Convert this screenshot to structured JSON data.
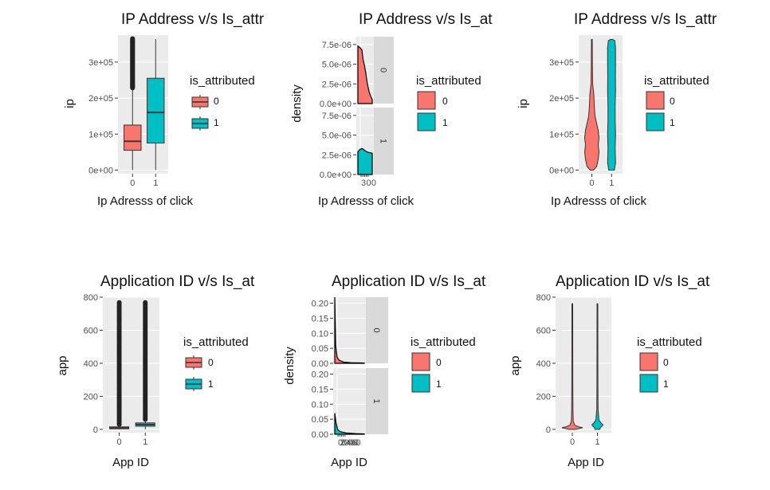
{
  "colors": {
    "level0": "#F8766D",
    "level1": "#00BFC4",
    "panel": "#EBEBEB",
    "strip": "#D9D9D9",
    "grid": "#FFFFFF",
    "ink": "#333333"
  },
  "chart_data": [
    {
      "type": "boxplot",
      "title": "IP Address v/s Is_attr",
      "xlabel": "Ip Adresss of click",
      "ylabel": "ip",
      "categories": [
        "0",
        "1"
      ],
      "ylim": [
        -10000,
        375000
      ],
      "yticks": [
        0,
        100000,
        200000,
        300000
      ],
      "ytick_labels": [
        "0e+00",
        "1e+05",
        "2e+05",
        "3e+05"
      ],
      "boxes": [
        {
          "group": "0",
          "q1": 55000,
          "median": 80000,
          "q3": 125000,
          "whisker_low": 0,
          "whisker_high": 228000,
          "outliers_from": 228000,
          "outliers_to": 365000
        },
        {
          "group": "1",
          "q1": 75000,
          "median": 160000,
          "q3": 255000,
          "whisker_low": 0,
          "whisker_high": 364000
        }
      ],
      "legend": {
        "title": "is_attributed",
        "entries": [
          "0",
          "1"
        ]
      }
    },
    {
      "type": "density",
      "title": "IP Address v/s Is_at",
      "xlabel": "Ip Adresss of click",
      "ylabel": "density",
      "facets": [
        "0",
        "1"
      ],
      "ylim": [
        0,
        8.5e-06
      ],
      "yticks": [
        0,
        2.5e-06,
        5e-06,
        7.5e-06
      ],
      "ytick_labels": [
        "0.0e+00",
        "2.5e-06",
        "5.0e-06",
        "7.5e-06"
      ],
      "x_tick_labels": "300",
      "legend": {
        "title": "is_attributed",
        "entries": [
          "0",
          "1"
        ]
      }
    },
    {
      "type": "violin",
      "title": "IP Address v/s Is_attr",
      "xlabel": "Ip Adresss of click",
      "ylabel": "ip",
      "categories": [
        "0",
        "1"
      ],
      "ylim": [
        -10000,
        375000
      ],
      "yticks": [
        0,
        100000,
        200000,
        300000
      ],
      "ytick_labels": [
        "0e+00",
        "1e+05",
        "2e+05",
        "3e+05"
      ],
      "legend": {
        "title": "is_attributed",
        "entries": [
          "0",
          "1"
        ]
      }
    },
    {
      "type": "boxplot",
      "title": "Application ID v/s Is_at",
      "xlabel": "App ID",
      "ylabel": "app",
      "categories": [
        "0",
        "1"
      ],
      "ylim": [
        -20,
        800
      ],
      "yticks": [
        0,
        200,
        400,
        600,
        800
      ],
      "ytick_labels": [
        "0",
        "200",
        "400",
        "600",
        "800"
      ],
      "boxes": [
        {
          "group": "0",
          "q1": 3,
          "median": 9,
          "q3": 15,
          "whisker_low": 0,
          "whisker_high": 30,
          "outliers_from": 30,
          "outliers_to": 768
        },
        {
          "group": "1",
          "q1": 19,
          "median": 29,
          "q3": 39,
          "whisker_low": 0,
          "whisker_high": 60,
          "outliers_from": 60,
          "outliers_to": 768
        }
      ],
      "legend": {
        "title": "is_attributed",
        "entries": [
          "0",
          "1"
        ]
      }
    },
    {
      "type": "density",
      "title": "Application ID v/s Is_at",
      "xlabel": "App ID",
      "ylabel": "density",
      "facets": [
        "0",
        "1"
      ],
      "ylim": [
        0,
        0.22
      ],
      "yticks": [
        0,
        0.05,
        0.1,
        0.15,
        0.2
      ],
      "ytick_labels": [
        "0.00",
        "0.05",
        "0.10",
        "0.15",
        "0.20"
      ],
      "x_tick_labels": "0200400600",
      "legend": {
        "title": "is_attributed",
        "entries": [
          "0",
          "1"
        ]
      }
    },
    {
      "type": "violin",
      "title": "Application ID v/s Is_at",
      "xlabel": "App ID",
      "ylabel": "app",
      "categories": [
        "0",
        "1"
      ],
      "ylim": [
        -20,
        800
      ],
      "yticks": [
        0,
        200,
        400,
        600,
        800
      ],
      "ytick_labels": [
        "0",
        "200",
        "400",
        "600",
        "800"
      ],
      "legend": {
        "title": "is_attributed",
        "entries": [
          "0",
          "1"
        ]
      }
    }
  ]
}
